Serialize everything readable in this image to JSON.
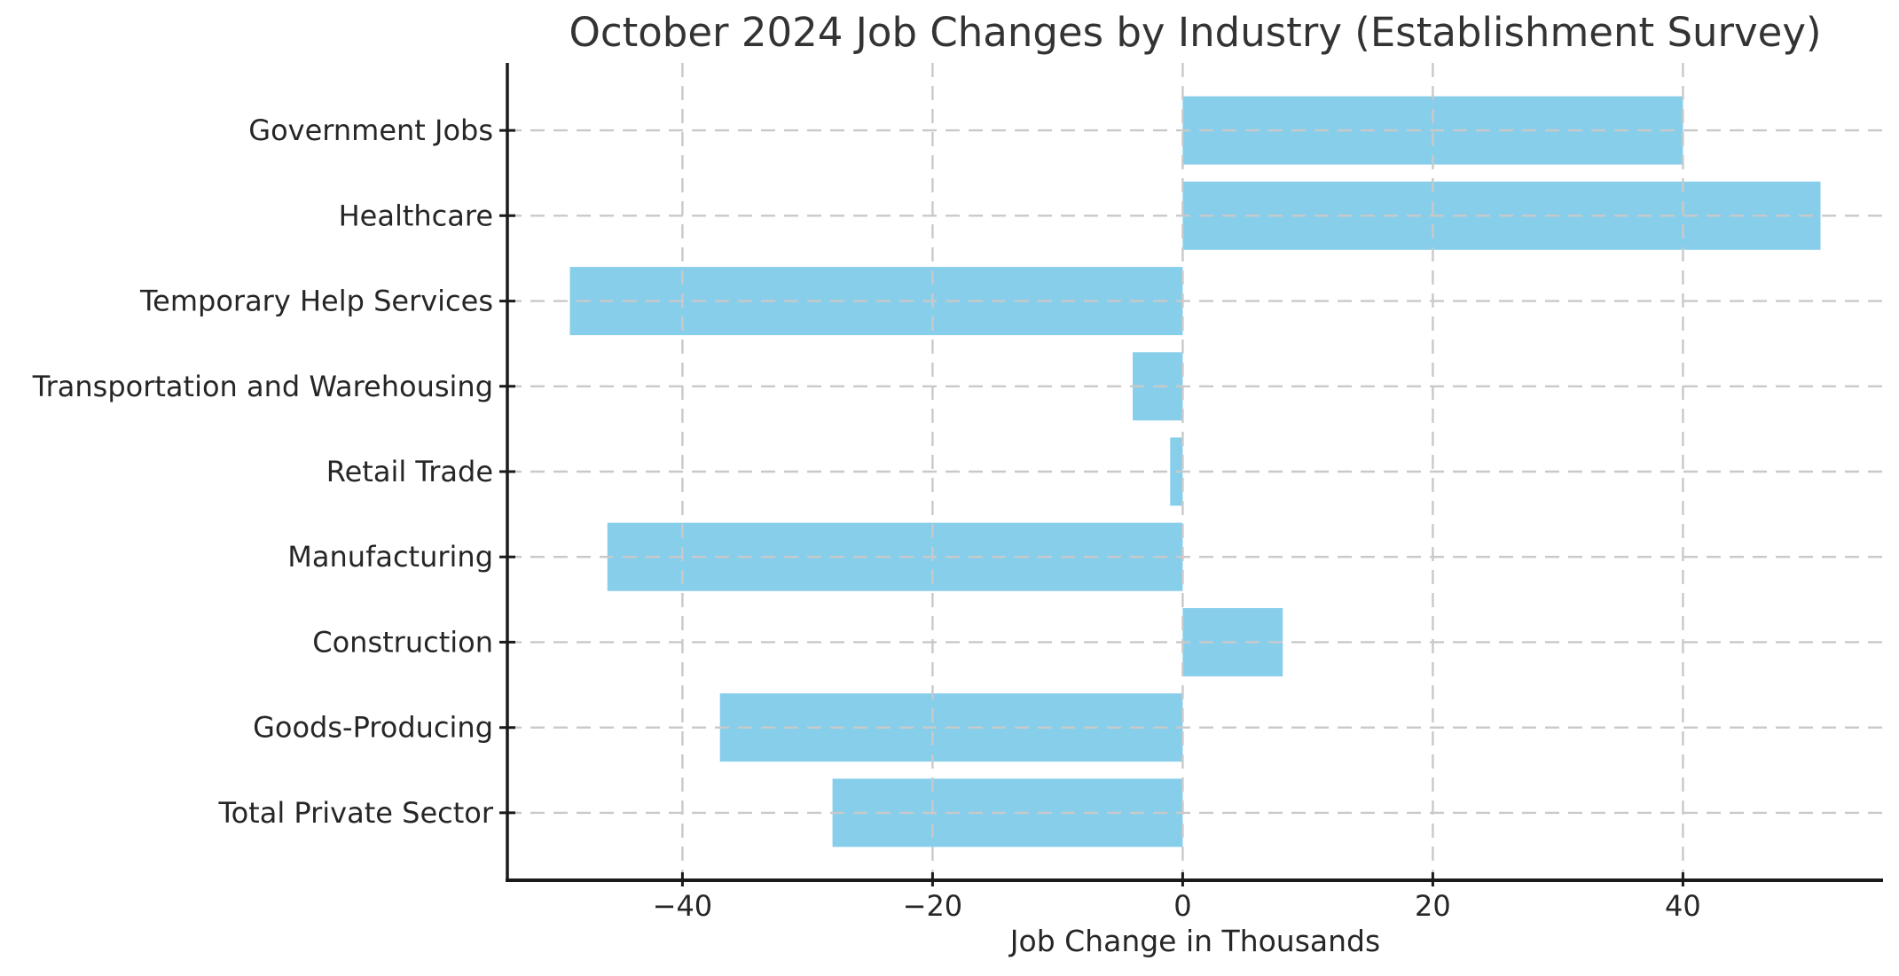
{
  "chart_data": {
    "type": "bar",
    "orientation": "horizontal",
    "title": "October 2024 Job Changes by Industry (Establishment Survey)",
    "xlabel": "Job Change in Thousands",
    "ylabel": "",
    "categories": [
      "Government Jobs",
      "Healthcare",
      "Temporary Help Services",
      "Transportation and Warehousing",
      "Retail Trade",
      "Manufacturing",
      "Construction",
      "Goods-Producing",
      "Total Private Sector"
    ],
    "values": [
      40,
      51,
      -49,
      -4,
      -1,
      -46,
      8,
      -37,
      -28
    ],
    "xlim": [
      -54,
      56
    ],
    "xticks": [
      -40,
      -20,
      0,
      20,
      40
    ],
    "xtick_labels": [
      "−40",
      "−20",
      "0",
      "20",
      "40"
    ],
    "grid": true,
    "grid_style": "dashed",
    "grid_over_bars": true,
    "legend": "none",
    "bar_color": "#87CEEB",
    "grid_color": "#C9C9C9",
    "axis_color": "#1A1A1A",
    "text_color": "#262626",
    "title_color": "#333333",
    "background_color": "#FFFFFF"
  }
}
